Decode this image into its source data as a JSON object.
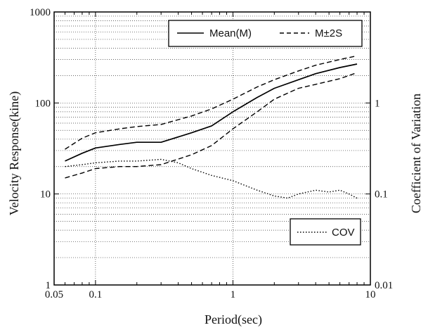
{
  "chart_data": {
    "type": "line",
    "title": "",
    "xlabel": "Period(sec)",
    "ylabel": "Velocity Response(kine)",
    "y2label": "Coefficient of Variation",
    "xscale": "log",
    "yscale": "log",
    "xlim": [
      0.05,
      10
    ],
    "ylim": [
      1,
      1000
    ],
    "y2lim": [
      0.01,
      10
    ],
    "grid": true,
    "x_ticks": [
      "0.05",
      "0.1",
      "1",
      "10"
    ],
    "y_ticks": [
      "1",
      "10",
      "100",
      "1000"
    ],
    "y2_ticks": [
      "0.01",
      "0.1",
      "1"
    ],
    "legends": [
      {
        "position": "top-right",
        "entries": [
          "Mean(M)",
          "M±2S"
        ]
      },
      {
        "position": "bottom-right",
        "entries": [
          "COV"
        ]
      }
    ],
    "series": [
      {
        "name": "Mean(M)",
        "axis": "left",
        "style": "solid",
        "x": [
          0.06,
          0.08,
          0.1,
          0.15,
          0.2,
          0.3,
          0.5,
          0.7,
          1.0,
          1.5,
          2.0,
          3.0,
          4.0,
          6.0,
          8.0
        ],
        "y": [
          23,
          28,
          32,
          35,
          37,
          37,
          47,
          56,
          80,
          115,
          145,
          180,
          210,
          245,
          268
        ]
      },
      {
        "name": "M+2S",
        "axis": "left",
        "style": "dashed",
        "x": [
          0.06,
          0.08,
          0.1,
          0.15,
          0.2,
          0.3,
          0.5,
          0.7,
          1.0,
          1.5,
          2.0,
          3.0,
          4.0,
          6.0,
          8.0
        ],
        "y": [
          31,
          41,
          47,
          52,
          55,
          58,
          72,
          86,
          110,
          150,
          180,
          225,
          260,
          300,
          330
        ]
      },
      {
        "name": "M-2S",
        "axis": "left",
        "style": "dashed",
        "x": [
          0.06,
          0.08,
          0.1,
          0.15,
          0.2,
          0.3,
          0.5,
          0.7,
          1.0,
          1.5,
          2.0,
          3.0,
          4.0,
          6.0,
          8.0
        ],
        "y": [
          15,
          17,
          19,
          20,
          20,
          21,
          27,
          34,
          52,
          80,
          110,
          145,
          160,
          185,
          215
        ]
      },
      {
        "name": "COV",
        "axis": "right",
        "style": "dotted",
        "x": [
          0.06,
          0.08,
          0.1,
          0.15,
          0.2,
          0.3,
          0.4,
          0.5,
          0.7,
          1.0,
          1.5,
          2.0,
          2.5,
          3.0,
          4.0,
          5.0,
          6.0,
          7.0,
          8.0
        ],
        "y": [
          0.2,
          0.21,
          0.22,
          0.23,
          0.23,
          0.24,
          0.22,
          0.19,
          0.16,
          0.14,
          0.11,
          0.095,
          0.09,
          0.1,
          0.11,
          0.105,
          0.11,
          0.1,
          0.09
        ]
      }
    ]
  }
}
